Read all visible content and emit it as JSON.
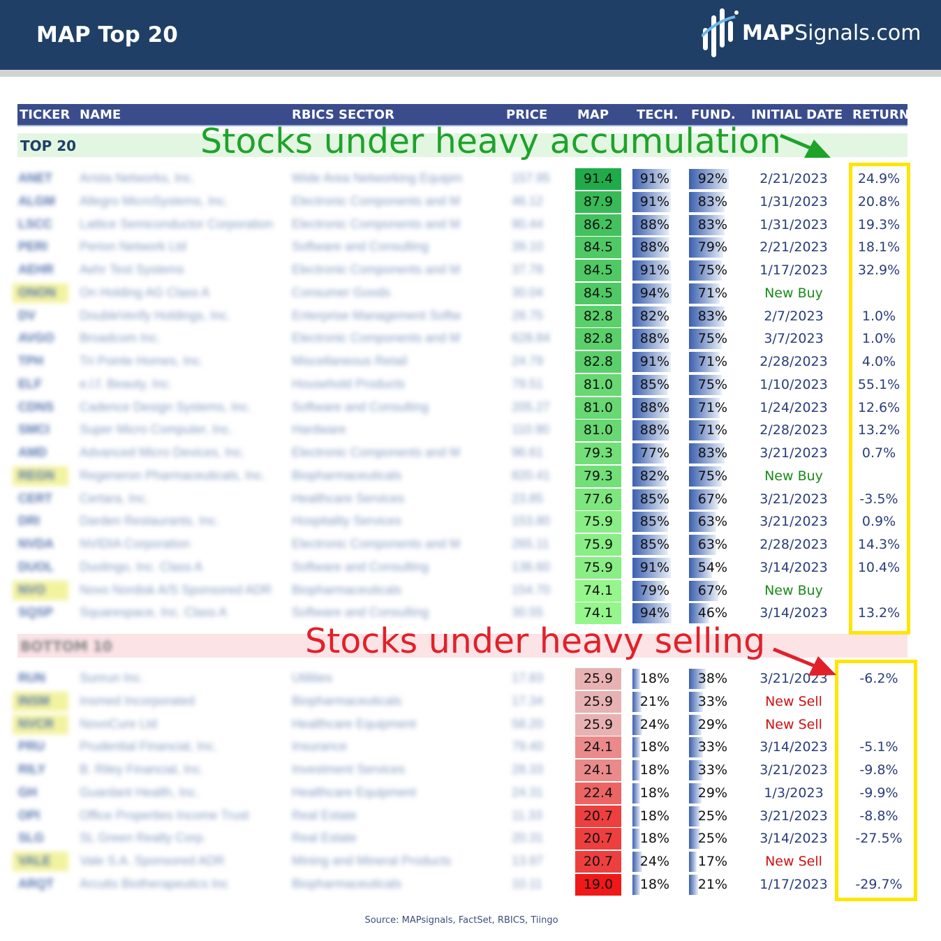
{
  "header": {
    "title": "MAP Top 20",
    "logo_bold": "MAP",
    "logo_rest": "Signals.com"
  },
  "columns": [
    "TICKER",
    "NAME",
    "RBICS SECTOR",
    "PRICE",
    "MAP",
    "TECH.",
    "FUND.",
    "INITIAL DATE",
    "RETURN"
  ],
  "sections": {
    "top_label": "TOP 20",
    "bottom_label": "BOTTOM 10"
  },
  "annotations": {
    "top": "Stocks under heavy accumulation",
    "bottom": "Stocks under heavy selling"
  },
  "colors": {
    "header_bg": "#1f3f66",
    "colhead_bg": "#3a4c8c",
    "accent_green": "#1fa22a",
    "accent_red": "#e0212a",
    "highlight_box": "#ffe500"
  },
  "top_rows": [
    {
      "ticker": "ANET",
      "name": "Arista Networks, Inc.",
      "sector": "Wide Area Networking Equipm",
      "price": "157.95",
      "map": "91.4",
      "tech": "91%",
      "fund": "92%",
      "date": "2/21/2023",
      "ret": "24.9%"
    },
    {
      "ticker": "ALGM",
      "name": "Allegro MicroSystems, Inc.",
      "sector": "Electronic Components and M",
      "price": "46.12",
      "map": "87.9",
      "tech": "91%",
      "fund": "83%",
      "date": "1/31/2023",
      "ret": "20.8%"
    },
    {
      "ticker": "LSCC",
      "name": "Lattice Semiconductor Corporation",
      "sector": "Electronic Components and M",
      "price": "90.44",
      "map": "86.2",
      "tech": "88%",
      "fund": "83%",
      "date": "1/31/2023",
      "ret": "19.3%"
    },
    {
      "ticker": "PERI",
      "name": "Perion Network Ltd",
      "sector": "Software and Consulting",
      "price": "39.10",
      "map": "84.5",
      "tech": "88%",
      "fund": "79%",
      "date": "2/21/2023",
      "ret": "18.1%"
    },
    {
      "ticker": "AEHR",
      "name": "Aehr Test Systems",
      "sector": "Electronic Components and M",
      "price": "37.78",
      "map": "84.5",
      "tech": "91%",
      "fund": "75%",
      "date": "1/17/2023",
      "ret": "32.9%"
    },
    {
      "ticker": "ONON",
      "name": "On Holding AG Class A",
      "sector": "Consumer Goods",
      "price": "30.04",
      "map": "84.5",
      "tech": "94%",
      "fund": "71%",
      "date": "New Buy",
      "ret": "",
      "hl": true
    },
    {
      "ticker": "DV",
      "name": "DoubleVerify Holdings, Inc.",
      "sector": "Enterprise Management Softw",
      "price": "28.75",
      "map": "82.8",
      "tech": "82%",
      "fund": "83%",
      "date": "2/7/2023",
      "ret": "1.0%"
    },
    {
      "ticker": "AVGO",
      "name": "Broadcom Inc.",
      "sector": "Electronic Components and M",
      "price": "628.84",
      "map": "82.8",
      "tech": "88%",
      "fund": "75%",
      "date": "3/7/2023",
      "ret": "1.0%"
    },
    {
      "ticker": "TPH",
      "name": "Tri Pointe Homes, Inc.",
      "sector": "Miscellaneous Retail",
      "price": "24.79",
      "map": "82.8",
      "tech": "91%",
      "fund": "71%",
      "date": "2/28/2023",
      "ret": "4.0%"
    },
    {
      "ticker": "ELF",
      "name": "e.l.f. Beauty, Inc.",
      "sector": "Household Products",
      "price": "79.51",
      "map": "81.0",
      "tech": "85%",
      "fund": "75%",
      "date": "1/10/2023",
      "ret": "55.1%"
    },
    {
      "ticker": "CDNS",
      "name": "Cadence Design Systems, Inc.",
      "sector": "Software and Consulting",
      "price": "205.27",
      "map": "81.0",
      "tech": "88%",
      "fund": "71%",
      "date": "1/24/2023",
      "ret": "12.6%"
    },
    {
      "ticker": "SMCI",
      "name": "Super Micro Computer, Inc.",
      "sector": "Hardware",
      "price": "110.90",
      "map": "81.0",
      "tech": "88%",
      "fund": "71%",
      "date": "2/28/2023",
      "ret": "13.2%"
    },
    {
      "ticker": "AMD",
      "name": "Advanced Micro Devices, Inc.",
      "sector": "Electronic Components and M",
      "price": "96.61",
      "map": "79.3",
      "tech": "77%",
      "fund": "83%",
      "date": "3/21/2023",
      "ret": "0.7%"
    },
    {
      "ticker": "REGN",
      "name": "Regeneron Pharmaceuticals, Inc.",
      "sector": "Biopharmaceuticals",
      "price": "820.41",
      "map": "79.3",
      "tech": "82%",
      "fund": "75%",
      "date": "New Buy",
      "ret": "",
      "hl": true
    },
    {
      "ticker": "CERT",
      "name": "Certara, Inc.",
      "sector": "Healthcare Services",
      "price": "23.85",
      "map": "77.6",
      "tech": "85%",
      "fund": "67%",
      "date": "3/21/2023",
      "ret": "-3.5%"
    },
    {
      "ticker": "DRI",
      "name": "Darden Restaurants, Inc.",
      "sector": "Hospitality Services",
      "price": "153.80",
      "map": "75.9",
      "tech": "85%",
      "fund": "63%",
      "date": "3/21/2023",
      "ret": "0.9%"
    },
    {
      "ticker": "NVDA",
      "name": "NVIDIA Corporation",
      "sector": "Electronic Components and M",
      "price": "265.11",
      "map": "75.9",
      "tech": "85%",
      "fund": "63%",
      "date": "2/28/2023",
      "ret": "14.3%"
    },
    {
      "ticker": "DUOL",
      "name": "Duolingo, Inc. Class A",
      "sector": "Software and Consulting",
      "price": "136.60",
      "map": "75.9",
      "tech": "91%",
      "fund": "54%",
      "date": "3/14/2023",
      "ret": "10.4%"
    },
    {
      "ticker": "NVO",
      "name": "Novo Nordisk A/S Sponsored ADR",
      "sector": "Biopharmaceuticals",
      "price": "154.70",
      "map": "74.1",
      "tech": "79%",
      "fund": "67%",
      "date": "New Buy",
      "ret": "",
      "hl": true
    },
    {
      "ticker": "SQSP",
      "name": "Squarespace, Inc. Class A",
      "sector": "Software and Consulting",
      "price": "30.55",
      "map": "74.1",
      "tech": "94%",
      "fund": "46%",
      "date": "3/14/2023",
      "ret": "13.2%"
    }
  ],
  "bottom_rows": [
    {
      "ticker": "RUN",
      "name": "Sunrun Inc.",
      "sector": "Utilities",
      "price": "17.83",
      "map": "25.9",
      "tech": "18%",
      "fund": "38%",
      "date": "3/21/2023",
      "ret": "-6.2%"
    },
    {
      "ticker": "INSM",
      "name": "Insmed Incorporated",
      "sector": "Biopharmaceuticals",
      "price": "17.34",
      "map": "25.9",
      "tech": "21%",
      "fund": "33%",
      "date": "New Sell",
      "ret": "",
      "hl": true
    },
    {
      "ticker": "NVCR",
      "name": "NovoCure Ltd",
      "sector": "Healthcare Equipment",
      "price": "58.20",
      "map": "25.9",
      "tech": "24%",
      "fund": "29%",
      "date": "New Sell",
      "ret": "",
      "hl": true
    },
    {
      "ticker": "PRU",
      "name": "Prudential Financial, Inc.",
      "sector": "Insurance",
      "price": "79.40",
      "map": "24.1",
      "tech": "18%",
      "fund": "33%",
      "date": "3/14/2023",
      "ret": "-5.1%"
    },
    {
      "ticker": "RILY",
      "name": "B. Riley Financial, Inc.",
      "sector": "Investment Services",
      "price": "28.33",
      "map": "24.1",
      "tech": "18%",
      "fund": "33%",
      "date": "3/21/2023",
      "ret": "-9.8%"
    },
    {
      "ticker": "GH",
      "name": "Guardant Health, Inc.",
      "sector": "Healthcare Equipment",
      "price": "24.31",
      "map": "22.4",
      "tech": "18%",
      "fund": "29%",
      "date": "1/3/2023",
      "ret": "-9.9%"
    },
    {
      "ticker": "OPI",
      "name": "Office Properties Income Trust",
      "sector": "Real Estate",
      "price": "11.33",
      "map": "20.7",
      "tech": "18%",
      "fund": "25%",
      "date": "3/21/2023",
      "ret": "-8.8%"
    },
    {
      "ticker": "SLG",
      "name": "SL Green Realty Corp.",
      "sector": "Real Estate",
      "price": "20.31",
      "map": "20.7",
      "tech": "18%",
      "fund": "25%",
      "date": "3/14/2023",
      "ret": "-27.5%"
    },
    {
      "ticker": "VALE",
      "name": "Vale S.A. Sponsored ADR",
      "sector": "Mining and Mineral Products",
      "price": "13.97",
      "map": "20.7",
      "tech": "24%",
      "fund": "17%",
      "date": "New Sell",
      "ret": "",
      "hl": true
    },
    {
      "ticker": "ARQT",
      "name": "Arcutis Biotherapeutics Inc",
      "sector": "Biopharmaceuticals",
      "price": "10.11",
      "map": "19.0",
      "tech": "18%",
      "fund": "21%",
      "date": "1/17/2023",
      "ret": "-29.7%"
    }
  ],
  "source": "Source: MAPsignals, FactSet, RBICS, Tiingo"
}
